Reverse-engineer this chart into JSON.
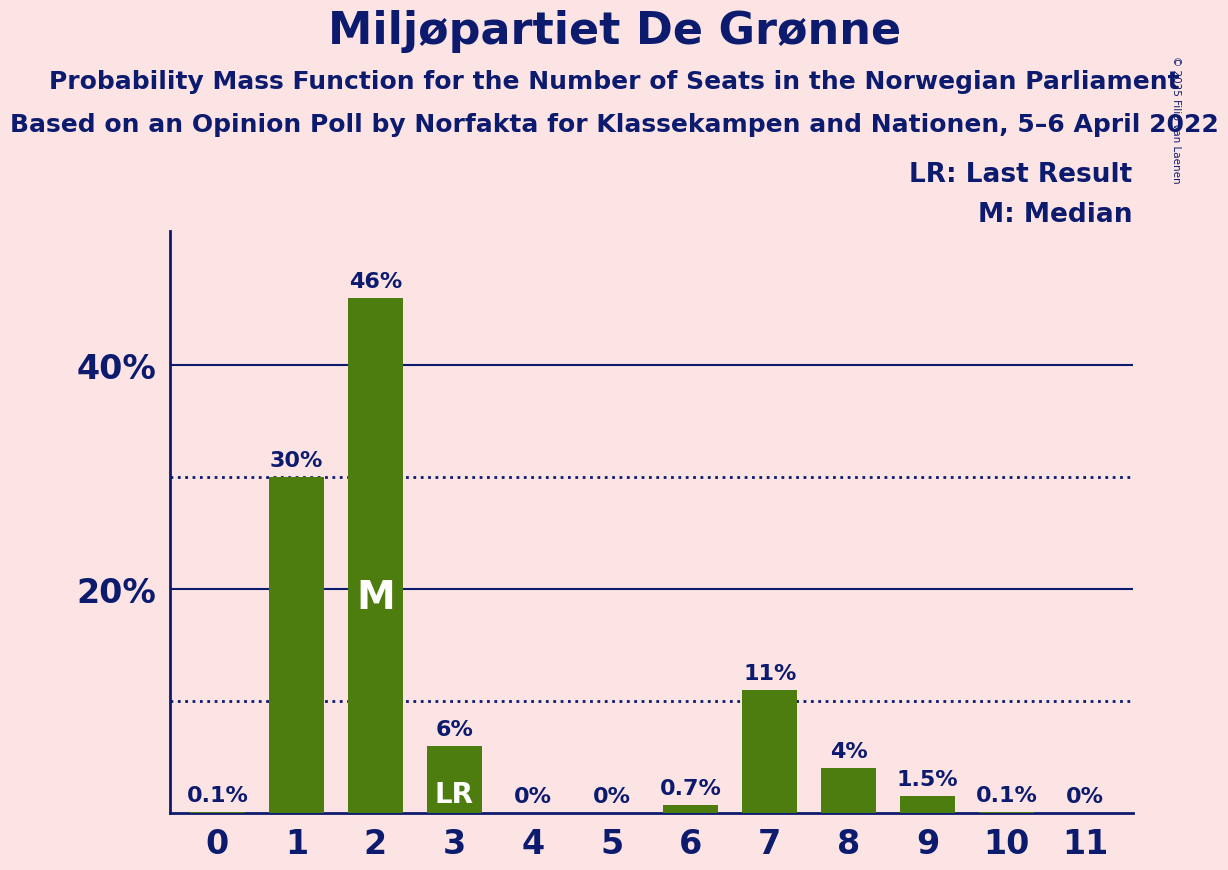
{
  "title": "Miljøpartiet De Grønne",
  "subtitle1": "Probability Mass Function for the Number of Seats in the Norwegian Parliament",
  "subtitle2": "Based on an Opinion Poll by Norfakta for Klassekampen and Nationen, 5–6 April 2022",
  "copyright": "© 2025 Filip van Laenen",
  "categories": [
    0,
    1,
    2,
    3,
    4,
    5,
    6,
    7,
    8,
    9,
    10,
    11
  ],
  "values": [
    0.001,
    0.3,
    0.46,
    0.06,
    0.0,
    0.0,
    0.007,
    0.11,
    0.04,
    0.015,
    0.001,
    0.0
  ],
  "labels": [
    "0.1%",
    "30%",
    "46%",
    "6%",
    "0%",
    "0%",
    "0.7%",
    "11%",
    "4%",
    "1.5%",
    "0.1%",
    "0%"
  ],
  "bar_color": "#4d7c0f",
  "background_color": "#fce4e4",
  "text_color": "#0d1b6e",
  "title_fontsize": 32,
  "subtitle_fontsize": 18,
  "ylabel_ticks": [
    "20%",
    "40%"
  ],
  "yticks": [
    0.2,
    0.4
  ],
  "dotted_lines": [
    0.1,
    0.3
  ],
  "median_bar": 2,
  "lr_bar": 3,
  "ylim": [
    0,
    0.52
  ],
  "legend_lr": "LR: Last Result",
  "legend_m": "M: Median"
}
